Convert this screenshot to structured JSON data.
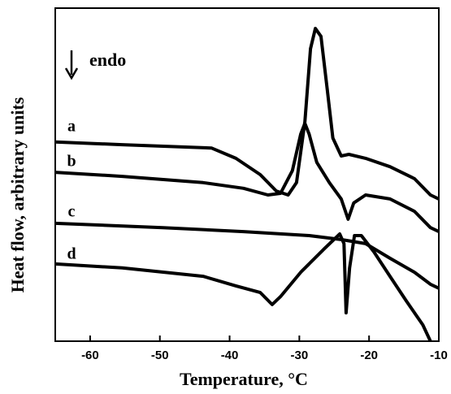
{
  "chart_data": {
    "type": "line",
    "x_label": "Temperature, °C",
    "y_label": "Heat flow, arbitrary units",
    "annotation": "endo",
    "xlim": [
      -65,
      -10
    ],
    "xticks": [
      -60,
      -50,
      -40,
      -30,
      -20,
      -10
    ],
    "ylim": [
      0,
      100
    ],
    "series": [
      {
        "name": "a",
        "color": "#000000",
        "x": [
          -65,
          -55.4,
          -42.6,
          -39.1,
          -35.6,
          -33.3,
          -31.6,
          -30.4,
          -29.2,
          -28.4,
          -27.7,
          -26.9,
          -26.0,
          -25.2,
          -24.0,
          -22.9,
          -20.5,
          -17.0,
          -13.5,
          -11.2,
          -10
        ],
        "values": [
          59.8,
          59.0,
          58.0,
          54.9,
          50.0,
          45.1,
          43.9,
          47.6,
          65.9,
          87.8,
          93.9,
          91.5,
          75.6,
          61.0,
          55.6,
          56.1,
          54.9,
          52.4,
          48.8,
          43.9,
          42.7
        ]
      },
      {
        "name": "b",
        "color": "#000000",
        "x": [
          -65,
          -55.4,
          -43.8,
          -38.0,
          -34.5,
          -32.7,
          -31.0,
          -29.8,
          -29.2,
          -28.6,
          -27.5,
          -25.7,
          -24.0,
          -23.0,
          -22.2,
          -20.5,
          -17.0,
          -13.5,
          -11.2,
          -10
        ],
        "values": [
          50.7,
          49.5,
          47.6,
          45.9,
          43.9,
          44.4,
          51.2,
          62.2,
          65.4,
          62.2,
          53.7,
          47.6,
          42.7,
          36.6,
          41.5,
          43.9,
          42.7,
          39.0,
          34.1,
          32.9
        ]
      },
      {
        "name": "c",
        "color": "#000000",
        "x": [
          -65,
          -49.6,
          -38.0,
          -28.6,
          -24.0,
          -20.5,
          -17.0,
          -13.5,
          -11.2,
          -10
        ],
        "values": [
          35.4,
          34.1,
          32.9,
          31.7,
          30.5,
          29.3,
          24.9,
          20.7,
          17.1,
          15.9
        ]
      },
      {
        "name": "d",
        "color": "#000000",
        "x": [
          -65,
          -55.4,
          -43.8,
          -39.1,
          -35.6,
          -33.9,
          -32.7,
          -29.8,
          -26.3,
          -24.2,
          -23.6,
          -23.3,
          -22.8,
          -22.1,
          -21.1,
          -19.3,
          -17.0,
          -14.7,
          -12.3,
          -11.2
        ],
        "values": [
          23.2,
          22.0,
          19.5,
          16.6,
          14.6,
          11.0,
          13.4,
          20.7,
          28.0,
          32.2,
          29.3,
          8.5,
          22.0,
          31.7,
          31.7,
          26.8,
          19.5,
          12.2,
          4.9,
          0
        ]
      }
    ]
  }
}
